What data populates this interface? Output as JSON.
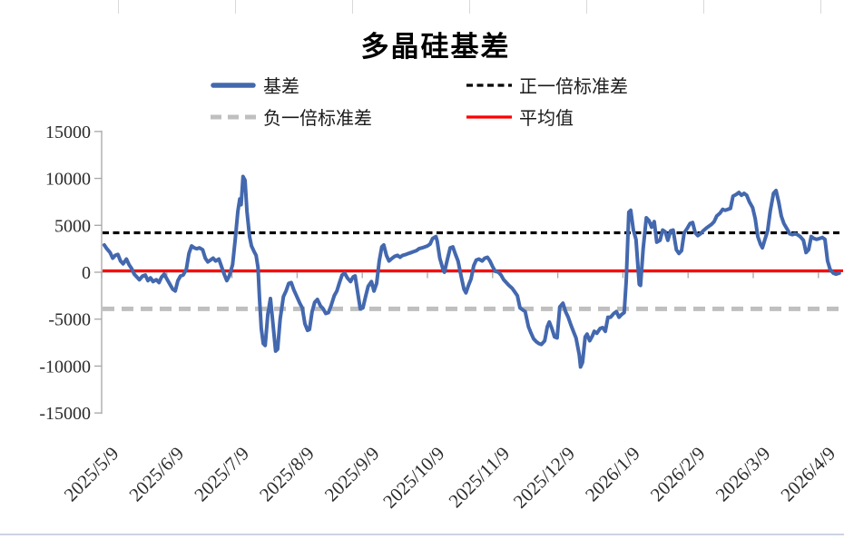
{
  "title": "多晶硅基差",
  "legend": [
    {
      "label": "基差",
      "style": "solid-thick",
      "color": "#4368AE"
    },
    {
      "label": "正一倍标准差",
      "style": "dashed",
      "color": "#000000"
    },
    {
      "label": "负一倍标准差",
      "style": "dashed-thick",
      "color": "#BFBFBF"
    },
    {
      "label": "平均值",
      "style": "solid",
      "color": "#FF0000"
    }
  ],
  "colors": {
    "series_blue": "#4368AE",
    "mean_red": "#FF0000",
    "plus_std_black": "#000000",
    "minus_std_gray": "#BFBFBF",
    "axis_gray": "#a6a6a6",
    "tick_text": "#2b2b2b"
  },
  "chart_data": {
    "type": "line",
    "title": "多晶硅基差",
    "ylim": [
      -15000,
      15000
    ],
    "ytick_labels": [
      "15000",
      "10000",
      "5000",
      "0",
      "-5000",
      "-10000",
      "-15000"
    ],
    "ytick_values": [
      15000,
      10000,
      5000,
      0,
      -5000,
      -10000,
      -15000
    ],
    "xtick_labels": [
      "2025/5/9",
      "2025/6/9",
      "2025/7/9",
      "2025/8/9",
      "2025/9/9",
      "2025/10/9",
      "2025/11/9",
      "2025/12/9",
      "2026/1/9",
      "2026/2/9",
      "2026/3/9",
      "2026/4/9"
    ],
    "grid": false,
    "legend_position": "top",
    "reference_lines": [
      {
        "label": "正一倍标准差",
        "value": 4200,
        "color": "#000000",
        "dash": [
          7,
          4.5
        ],
        "width": 3.2
      },
      {
        "label": "平均值",
        "value": 150,
        "color": "#FF0000",
        "dash": null,
        "width": 3.2
      },
      {
        "label": "负一倍标准差",
        "value": -3900,
        "color": "#BFBFBF",
        "dash": [
          13,
          8
        ],
        "width": 5
      }
    ],
    "series": [
      {
        "name": "基差",
        "color": "#4368AE",
        "width": 4,
        "x_unit": "months_since_2025/5/9",
        "points": [
          [
            0.04,
            2900
          ],
          [
            0.08,
            2500
          ],
          [
            0.13,
            2100
          ],
          [
            0.17,
            1500
          ],
          [
            0.21,
            1800
          ],
          [
            0.25,
            1900
          ],
          [
            0.29,
            1200
          ],
          [
            0.33,
            900
          ],
          [
            0.38,
            1400
          ],
          [
            0.42,
            800
          ],
          [
            0.46,
            400
          ],
          [
            0.5,
            -200
          ],
          [
            0.54,
            -500
          ],
          [
            0.58,
            -800
          ],
          [
            0.63,
            -400
          ],
          [
            0.67,
            -300
          ],
          [
            0.71,
            -900
          ],
          [
            0.75,
            -600
          ],
          [
            0.79,
            -1000
          ],
          [
            0.84,
            -800
          ],
          [
            0.88,
            -1100
          ],
          [
            0.92,
            -500
          ],
          [
            0.96,
            -200
          ],
          [
            1.0,
            -700
          ],
          [
            1.04,
            -1200
          ],
          [
            1.09,
            -1800
          ],
          [
            1.13,
            -2000
          ],
          [
            1.17,
            -900
          ],
          [
            1.21,
            -400
          ],
          [
            1.25,
            -300
          ],
          [
            1.3,
            300
          ],
          [
            1.34,
            2000
          ],
          [
            1.38,
            2800
          ],
          [
            1.42,
            2600
          ],
          [
            1.46,
            2500
          ],
          [
            1.5,
            2600
          ],
          [
            1.55,
            2400
          ],
          [
            1.59,
            1500
          ],
          [
            1.63,
            1100
          ],
          [
            1.67,
            1300
          ],
          [
            1.71,
            1500
          ],
          [
            1.75,
            1200
          ],
          [
            1.8,
            1400
          ],
          [
            1.84,
            600
          ],
          [
            1.88,
            -200
          ],
          [
            1.92,
            -900
          ],
          [
            1.96,
            -400
          ],
          [
            2.01,
            800
          ],
          [
            2.05,
            3500
          ],
          [
            2.09,
            6500
          ],
          [
            2.12,
            7800
          ],
          [
            2.14,
            7200
          ],
          [
            2.17,
            10200
          ],
          [
            2.2,
            9800
          ],
          [
            2.23,
            6500
          ],
          [
            2.27,
            3800
          ],
          [
            2.3,
            2800
          ],
          [
            2.34,
            2200
          ],
          [
            2.37,
            1800
          ],
          [
            2.4,
            500
          ],
          [
            2.42,
            -2500
          ],
          [
            2.45,
            -6000
          ],
          [
            2.48,
            -7600
          ],
          [
            2.51,
            -7800
          ],
          [
            2.55,
            -4500
          ],
          [
            2.59,
            -2800
          ],
          [
            2.63,
            -5500
          ],
          [
            2.67,
            -8400
          ],
          [
            2.7,
            -8200
          ],
          [
            2.74,
            -5000
          ],
          [
            2.79,
            -2600
          ],
          [
            2.83,
            -2000
          ],
          [
            2.87,
            -1200
          ],
          [
            2.91,
            -1100
          ],
          [
            2.95,
            -1900
          ],
          [
            2.99,
            -2500
          ],
          [
            3.04,
            -3300
          ],
          [
            3.08,
            -3800
          ],
          [
            3.12,
            -5500
          ],
          [
            3.16,
            -6200
          ],
          [
            3.19,
            -6100
          ],
          [
            3.23,
            -4200
          ],
          [
            3.27,
            -3200
          ],
          [
            3.31,
            -2900
          ],
          [
            3.36,
            -3600
          ],
          [
            3.4,
            -3900
          ],
          [
            3.44,
            -4400
          ],
          [
            3.48,
            -4300
          ],
          [
            3.52,
            -3600
          ],
          [
            3.57,
            -2500
          ],
          [
            3.61,
            -2000
          ],
          [
            3.65,
            -1100
          ],
          [
            3.69,
            -300
          ],
          [
            3.73,
            -100
          ],
          [
            3.77,
            -600
          ],
          [
            3.82,
            -1000
          ],
          [
            3.86,
            -500
          ],
          [
            3.89,
            -400
          ],
          [
            3.93,
            -2200
          ],
          [
            3.97,
            -3900
          ],
          [
            4.01,
            -3800
          ],
          [
            4.05,
            -2600
          ],
          [
            4.09,
            -1500
          ],
          [
            4.14,
            -1000
          ],
          [
            4.18,
            -2000
          ],
          [
            4.22,
            -1200
          ],
          [
            4.26,
            1200
          ],
          [
            4.3,
            2700
          ],
          [
            4.33,
            2900
          ],
          [
            4.37,
            1800
          ],
          [
            4.41,
            1200
          ],
          [
            4.46,
            1500
          ],
          [
            4.5,
            1700
          ],
          [
            4.54,
            1800
          ],
          [
            4.58,
            1600
          ],
          [
            4.62,
            1800
          ],
          [
            4.67,
            1900
          ],
          [
            4.71,
            2000
          ],
          [
            4.75,
            2100
          ],
          [
            4.79,
            2200
          ],
          [
            4.83,
            2300
          ],
          [
            4.87,
            2500
          ],
          [
            4.92,
            2600
          ],
          [
            4.96,
            2700
          ],
          [
            5.0,
            2800
          ],
          [
            5.04,
            3000
          ],
          [
            5.08,
            3600
          ],
          [
            5.13,
            3800
          ],
          [
            5.15,
            3300
          ],
          [
            5.19,
            1500
          ],
          [
            5.24,
            300
          ],
          [
            5.26,
            0
          ],
          [
            5.31,
            1500
          ],
          [
            5.35,
            2600
          ],
          [
            5.39,
            2700
          ],
          [
            5.43,
            1900
          ],
          [
            5.47,
            1200
          ],
          [
            5.52,
            -500
          ],
          [
            5.56,
            -1800
          ],
          [
            5.59,
            -2200
          ],
          [
            5.63,
            -1400
          ],
          [
            5.67,
            -700
          ],
          [
            5.71,
            700
          ],
          [
            5.75,
            1300
          ],
          [
            5.79,
            1400
          ],
          [
            5.84,
            1200
          ],
          [
            5.88,
            1500
          ],
          [
            5.92,
            1600
          ],
          [
            5.96,
            1200
          ],
          [
            6.0,
            600
          ],
          [
            6.04,
            100
          ],
          [
            6.09,
            0
          ],
          [
            6.13,
            -300
          ],
          [
            6.17,
            -800
          ],
          [
            6.21,
            -1100
          ],
          [
            6.25,
            -1400
          ],
          [
            6.3,
            -1700
          ],
          [
            6.34,
            -2100
          ],
          [
            6.38,
            -2500
          ],
          [
            6.42,
            -3800
          ],
          [
            6.46,
            -4000
          ],
          [
            6.5,
            -4200
          ],
          [
            6.55,
            -5800
          ],
          [
            6.59,
            -6500
          ],
          [
            6.63,
            -7100
          ],
          [
            6.67,
            -7400
          ],
          [
            6.71,
            -7600
          ],
          [
            6.75,
            -7700
          ],
          [
            6.8,
            -7300
          ],
          [
            6.84,
            -5800
          ],
          [
            6.87,
            -5300
          ],
          [
            6.91,
            -6000
          ],
          [
            6.95,
            -6900
          ],
          [
            6.99,
            -7000
          ],
          [
            7.03,
            -3700
          ],
          [
            7.08,
            -3300
          ],
          [
            7.12,
            -4200
          ],
          [
            7.16,
            -4800
          ],
          [
            7.2,
            -5600
          ],
          [
            7.24,
            -6300
          ],
          [
            7.28,
            -7000
          ],
          [
            7.33,
            -8800
          ],
          [
            7.35,
            -10100
          ],
          [
            7.38,
            -9600
          ],
          [
            7.42,
            -6900
          ],
          [
            7.45,
            -6600
          ],
          [
            7.49,
            -7300
          ],
          [
            7.53,
            -6800
          ],
          [
            7.56,
            -6300
          ],
          [
            7.6,
            -6500
          ],
          [
            7.65,
            -6000
          ],
          [
            7.69,
            -5900
          ],
          [
            7.73,
            -6300
          ],
          [
            7.77,
            -4800
          ],
          [
            7.81,
            -4800
          ],
          [
            7.86,
            -4400
          ],
          [
            7.9,
            -4200
          ],
          [
            7.94,
            -4800
          ],
          [
            7.98,
            -4500
          ],
          [
            8.02,
            -4300
          ],
          [
            8.05,
            -1000
          ],
          [
            8.09,
            6400
          ],
          [
            8.12,
            6600
          ],
          [
            8.16,
            4500
          ],
          [
            8.2,
            3500
          ],
          [
            8.25,
            -1300
          ],
          [
            8.27,
            -1400
          ],
          [
            8.31,
            2500
          ],
          [
            8.36,
            5800
          ],
          [
            8.4,
            5500
          ],
          [
            8.44,
            4800
          ],
          [
            8.48,
            5400
          ],
          [
            8.52,
            3200
          ],
          [
            8.57,
            3400
          ],
          [
            8.61,
            4500
          ],
          [
            8.65,
            4300
          ],
          [
            8.69,
            3400
          ],
          [
            8.73,
            4400
          ],
          [
            8.77,
            4500
          ],
          [
            8.82,
            2400
          ],
          [
            8.86,
            2000
          ],
          [
            8.9,
            2300
          ],
          [
            8.94,
            4200
          ],
          [
            8.98,
            4600
          ],
          [
            9.03,
            5200
          ],
          [
            9.07,
            5300
          ],
          [
            9.11,
            4200
          ],
          [
            9.15,
            3900
          ],
          [
            9.19,
            4100
          ],
          [
            9.23,
            4400
          ],
          [
            9.28,
            4700
          ],
          [
            9.32,
            4900
          ],
          [
            9.36,
            5100
          ],
          [
            9.4,
            5400
          ],
          [
            9.44,
            6000
          ],
          [
            9.49,
            6300
          ],
          [
            9.53,
            6700
          ],
          [
            9.57,
            6600
          ],
          [
            9.61,
            6700
          ],
          [
            9.65,
            6800
          ],
          [
            9.69,
            8100
          ],
          [
            9.74,
            8300
          ],
          [
            9.78,
            8500
          ],
          [
            9.82,
            8200
          ],
          [
            9.86,
            8400
          ],
          [
            9.9,
            8200
          ],
          [
            9.94,
            7500
          ],
          [
            9.99,
            6900
          ],
          [
            10.03,
            5700
          ],
          [
            10.07,
            3800
          ],
          [
            10.11,
            3000
          ],
          [
            10.14,
            2600
          ],
          [
            10.18,
            3500
          ],
          [
            10.22,
            4400
          ],
          [
            10.26,
            6500
          ],
          [
            10.31,
            8400
          ],
          [
            10.35,
            8700
          ],
          [
            10.39,
            7500
          ],
          [
            10.43,
            6000
          ],
          [
            10.47,
            5200
          ],
          [
            10.52,
            4600
          ],
          [
            10.56,
            4100
          ],
          [
            10.6,
            4000
          ],
          [
            10.64,
            4100
          ],
          [
            10.68,
            4000
          ],
          [
            10.72,
            3800
          ],
          [
            10.77,
            3400
          ],
          [
            10.81,
            2100
          ],
          [
            10.85,
            2400
          ],
          [
            10.89,
            3800
          ],
          [
            10.93,
            3600
          ],
          [
            10.97,
            3500
          ],
          [
            11.02,
            3600
          ],
          [
            11.06,
            3700
          ],
          [
            11.1,
            3500
          ],
          [
            11.14,
            1200
          ],
          [
            11.18,
            300
          ],
          [
            11.23,
            -100
          ],
          [
            11.27,
            -200
          ],
          [
            11.32,
            -100
          ]
        ]
      }
    ]
  }
}
